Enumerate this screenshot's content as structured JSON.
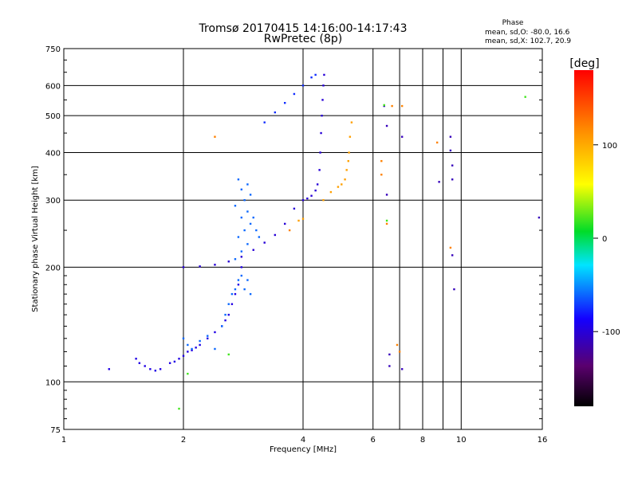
{
  "chart_data": {
    "type": "scatter",
    "title": "Tromsø 20170415 14:16:00-14:17:43",
    "subtitle": "RwPretec (8p)",
    "xlabel": "Frequency [MHz]",
    "ylabel": "Stationary phase Virtual Height [km]",
    "x_scale": "log",
    "y_scale": "log",
    "xlim": [
      1,
      16
    ],
    "ylim": [
      75,
      750
    ],
    "x_ticks": [
      1,
      2,
      4,
      6,
      8,
      10,
      16
    ],
    "x_minor_ticks": [
      7,
      9
    ],
    "y_ticks": [
      75,
      100,
      200,
      300,
      400,
      500,
      600,
      750
    ],
    "grid": true,
    "stats": {
      "title": "Phase",
      "line_o": "mean, sd,O: -80.0, 16.6",
      "line_x": "mean, sd,X: 102.7, 20.9"
    },
    "colorbar": {
      "label": "[deg]",
      "range": [
        -180,
        180
      ],
      "ticks": [
        100,
        0,
        -100
      ],
      "tick_labels": [
        "100",
        "0",
        "-100"
      ]
    },
    "series": [
      {
        "trace": "lower-F-low",
        "phase": -95,
        "points": [
          [
            1.3,
            108
          ],
          [
            1.52,
            115
          ],
          [
            1.55,
            112
          ],
          [
            1.6,
            110
          ],
          [
            1.65,
            108
          ],
          [
            1.7,
            107
          ],
          [
            1.75,
            108
          ],
          [
            1.85,
            112
          ],
          [
            1.9,
            113
          ],
          [
            1.95,
            115
          ],
          [
            2.0,
            117
          ],
          [
            2.05,
            120
          ],
          [
            2.1,
            121
          ],
          [
            2.15,
            123
          ],
          [
            2.2,
            125
          ],
          [
            2.3,
            130
          ],
          [
            2.4,
            135
          ],
          [
            2.5,
            140
          ],
          [
            2.55,
            145
          ],
          [
            2.6,
            150
          ],
          [
            2.65,
            160
          ],
          [
            2.7,
            170
          ],
          [
            2.75,
            180
          ],
          [
            2.8,
            200
          ]
        ]
      },
      {
        "trace": "lower-F-scatter",
        "phase": -60,
        "points": [
          [
            2.0,
            130
          ],
          [
            2.05,
            125
          ],
          [
            2.1,
            122
          ],
          [
            2.2,
            128
          ],
          [
            2.3,
            132
          ],
          [
            2.4,
            122
          ],
          [
            2.5,
            140
          ],
          [
            2.55,
            150
          ],
          [
            2.6,
            160
          ],
          [
            2.65,
            170
          ],
          [
            2.7,
            175
          ],
          [
            2.75,
            185
          ],
          [
            2.8,
            190
          ],
          [
            2.85,
            175
          ],
          [
            2.9,
            185
          ],
          [
            2.95,
            170
          ],
          [
            2.7,
            210
          ],
          [
            2.8,
            220
          ],
          [
            2.9,
            230
          ],
          [
            2.75,
            240
          ],
          [
            2.85,
            250
          ],
          [
            2.95,
            260
          ],
          [
            2.8,
            270
          ],
          [
            2.9,
            280
          ],
          [
            2.7,
            290
          ],
          [
            2.85,
            300
          ],
          [
            2.95,
            310
          ],
          [
            2.8,
            320
          ],
          [
            2.9,
            330
          ],
          [
            2.75,
            340
          ],
          [
            3.0,
            270
          ],
          [
            3.05,
            250
          ],
          [
            3.1,
            240
          ]
        ]
      },
      {
        "trace": "F-O-mode",
        "phase": -100,
        "points": [
          [
            2.0,
            200
          ],
          [
            2.2,
            201
          ],
          [
            2.4,
            203
          ],
          [
            2.6,
            207
          ],
          [
            2.8,
            213
          ],
          [
            3.0,
            222
          ],
          [
            3.2,
            232
          ],
          [
            3.4,
            243
          ],
          [
            3.6,
            260
          ],
          [
            3.8,
            285
          ],
          [
            4.0,
            300
          ],
          [
            4.1,
            303
          ],
          [
            4.2,
            308
          ],
          [
            4.3,
            318
          ],
          [
            4.35,
            330
          ],
          [
            4.4,
            360
          ],
          [
            4.42,
            400
          ],
          [
            4.44,
            450
          ],
          [
            4.46,
            500
          ],
          [
            4.48,
            550
          ],
          [
            4.5,
            600
          ],
          [
            4.52,
            640
          ]
        ]
      },
      {
        "trace": "F-O-mode-high",
        "phase": -75,
        "points": [
          [
            3.2,
            480
          ],
          [
            3.4,
            510
          ],
          [
            3.6,
            540
          ],
          [
            3.8,
            570
          ],
          [
            4.0,
            600
          ],
          [
            4.2,
            630
          ],
          [
            4.3,
            640
          ]
        ]
      },
      {
        "trace": "F-X-mode",
        "phase": 105,
        "points": [
          [
            3.9,
            265
          ],
          [
            4.0,
            268
          ],
          [
            4.5,
            300
          ],
          [
            4.7,
            315
          ],
          [
            4.9,
            325
          ],
          [
            5.0,
            330
          ],
          [
            5.1,
            340
          ],
          [
            5.15,
            360
          ],
          [
            5.2,
            380
          ],
          [
            5.22,
            400
          ],
          [
            5.25,
            440
          ],
          [
            5.3,
            480
          ]
        ]
      },
      {
        "trace": "outliers",
        "phase": -110,
        "points": [
          [
            6.5,
            470
          ],
          [
            6.4,
            530
          ],
          [
            6.5,
            310
          ],
          [
            6.6,
            110
          ],
          [
            6.6,
            118
          ],
          [
            7.1,
            440
          ],
          [
            7.1,
            108
          ],
          [
            8.8,
            335
          ],
          [
            9.4,
            440
          ],
          [
            9.5,
            370
          ],
          [
            9.5,
            340
          ],
          [
            9.5,
            215
          ],
          [
            9.6,
            175
          ],
          [
            15.7,
            270
          ],
          [
            9.4,
            405
          ]
        ]
      },
      {
        "trace": "outliers-warm",
        "phase": 120,
        "points": [
          [
            2.4,
            440
          ],
          [
            3.7,
            250
          ],
          [
            6.3,
            380
          ],
          [
            6.3,
            350
          ],
          [
            6.5,
            260
          ],
          [
            6.7,
            530
          ],
          [
            7.0,
            120
          ],
          [
            7.1,
            530
          ],
          [
            8.7,
            425
          ],
          [
            9.4,
            225
          ],
          [
            6.9,
            125
          ]
        ]
      },
      {
        "trace": "outliers-cool",
        "phase": 20,
        "points": [
          [
            1.95,
            85
          ],
          [
            2.05,
            105
          ],
          [
            6.5,
            265
          ],
          [
            14.5,
            560
          ],
          [
            6.4,
            533
          ],
          [
            2.6,
            118
          ]
        ]
      }
    ]
  }
}
